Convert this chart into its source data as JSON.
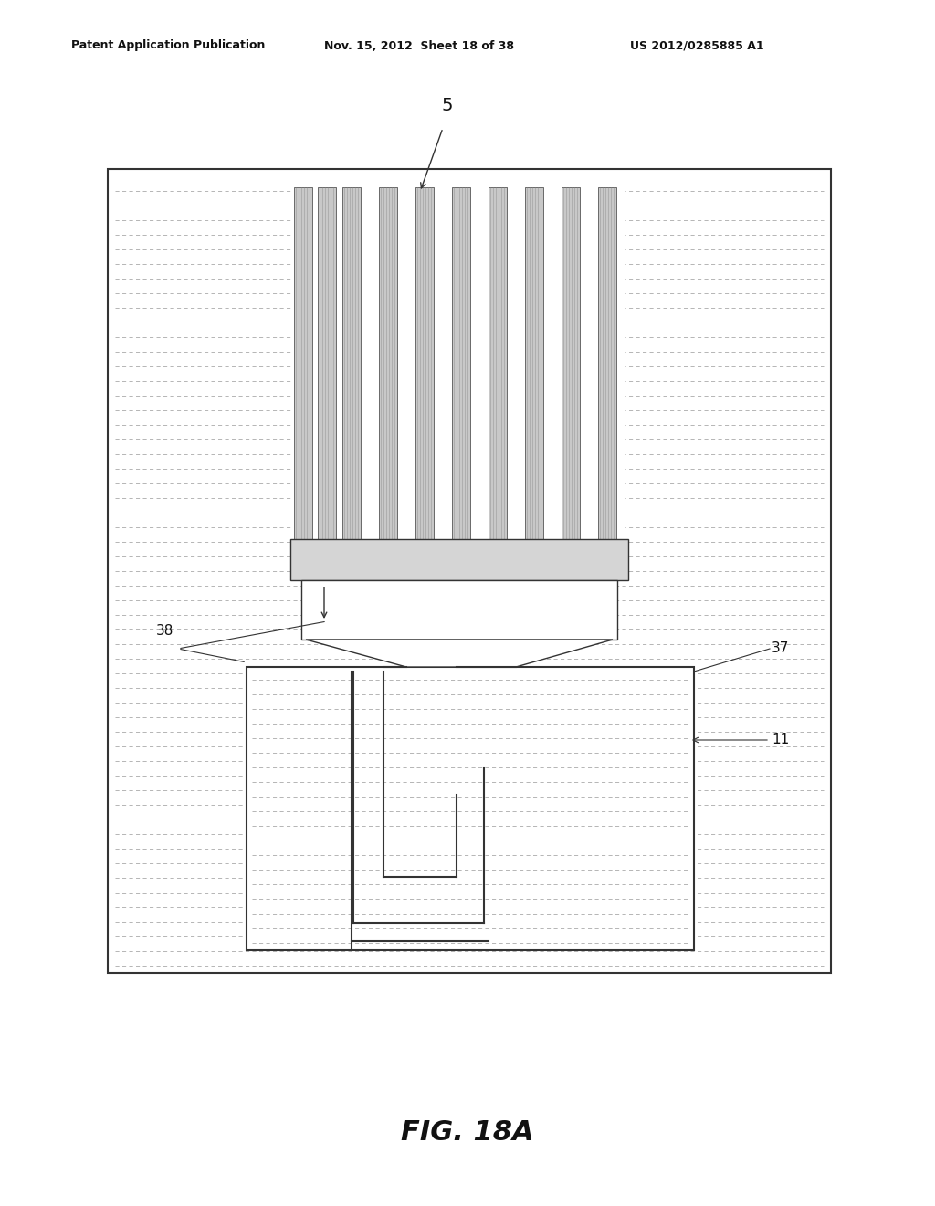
{
  "bg_color": "#ffffff",
  "header_text": "Patent Application Publication",
  "header_date": "Nov. 15, 2012  Sheet 18 of 38",
  "header_patent": "US 2012/0285885 A1",
  "fig_label": "FIG. 18A",
  "label_5": "5",
  "label_38": "38",
  "label_37": "37",
  "label_11": "11",
  "line_color": "#333333",
  "hatch_color": "#aaaaaa",
  "fiber_fill": "#c0c0c0",
  "fiber_edge": "#555555"
}
